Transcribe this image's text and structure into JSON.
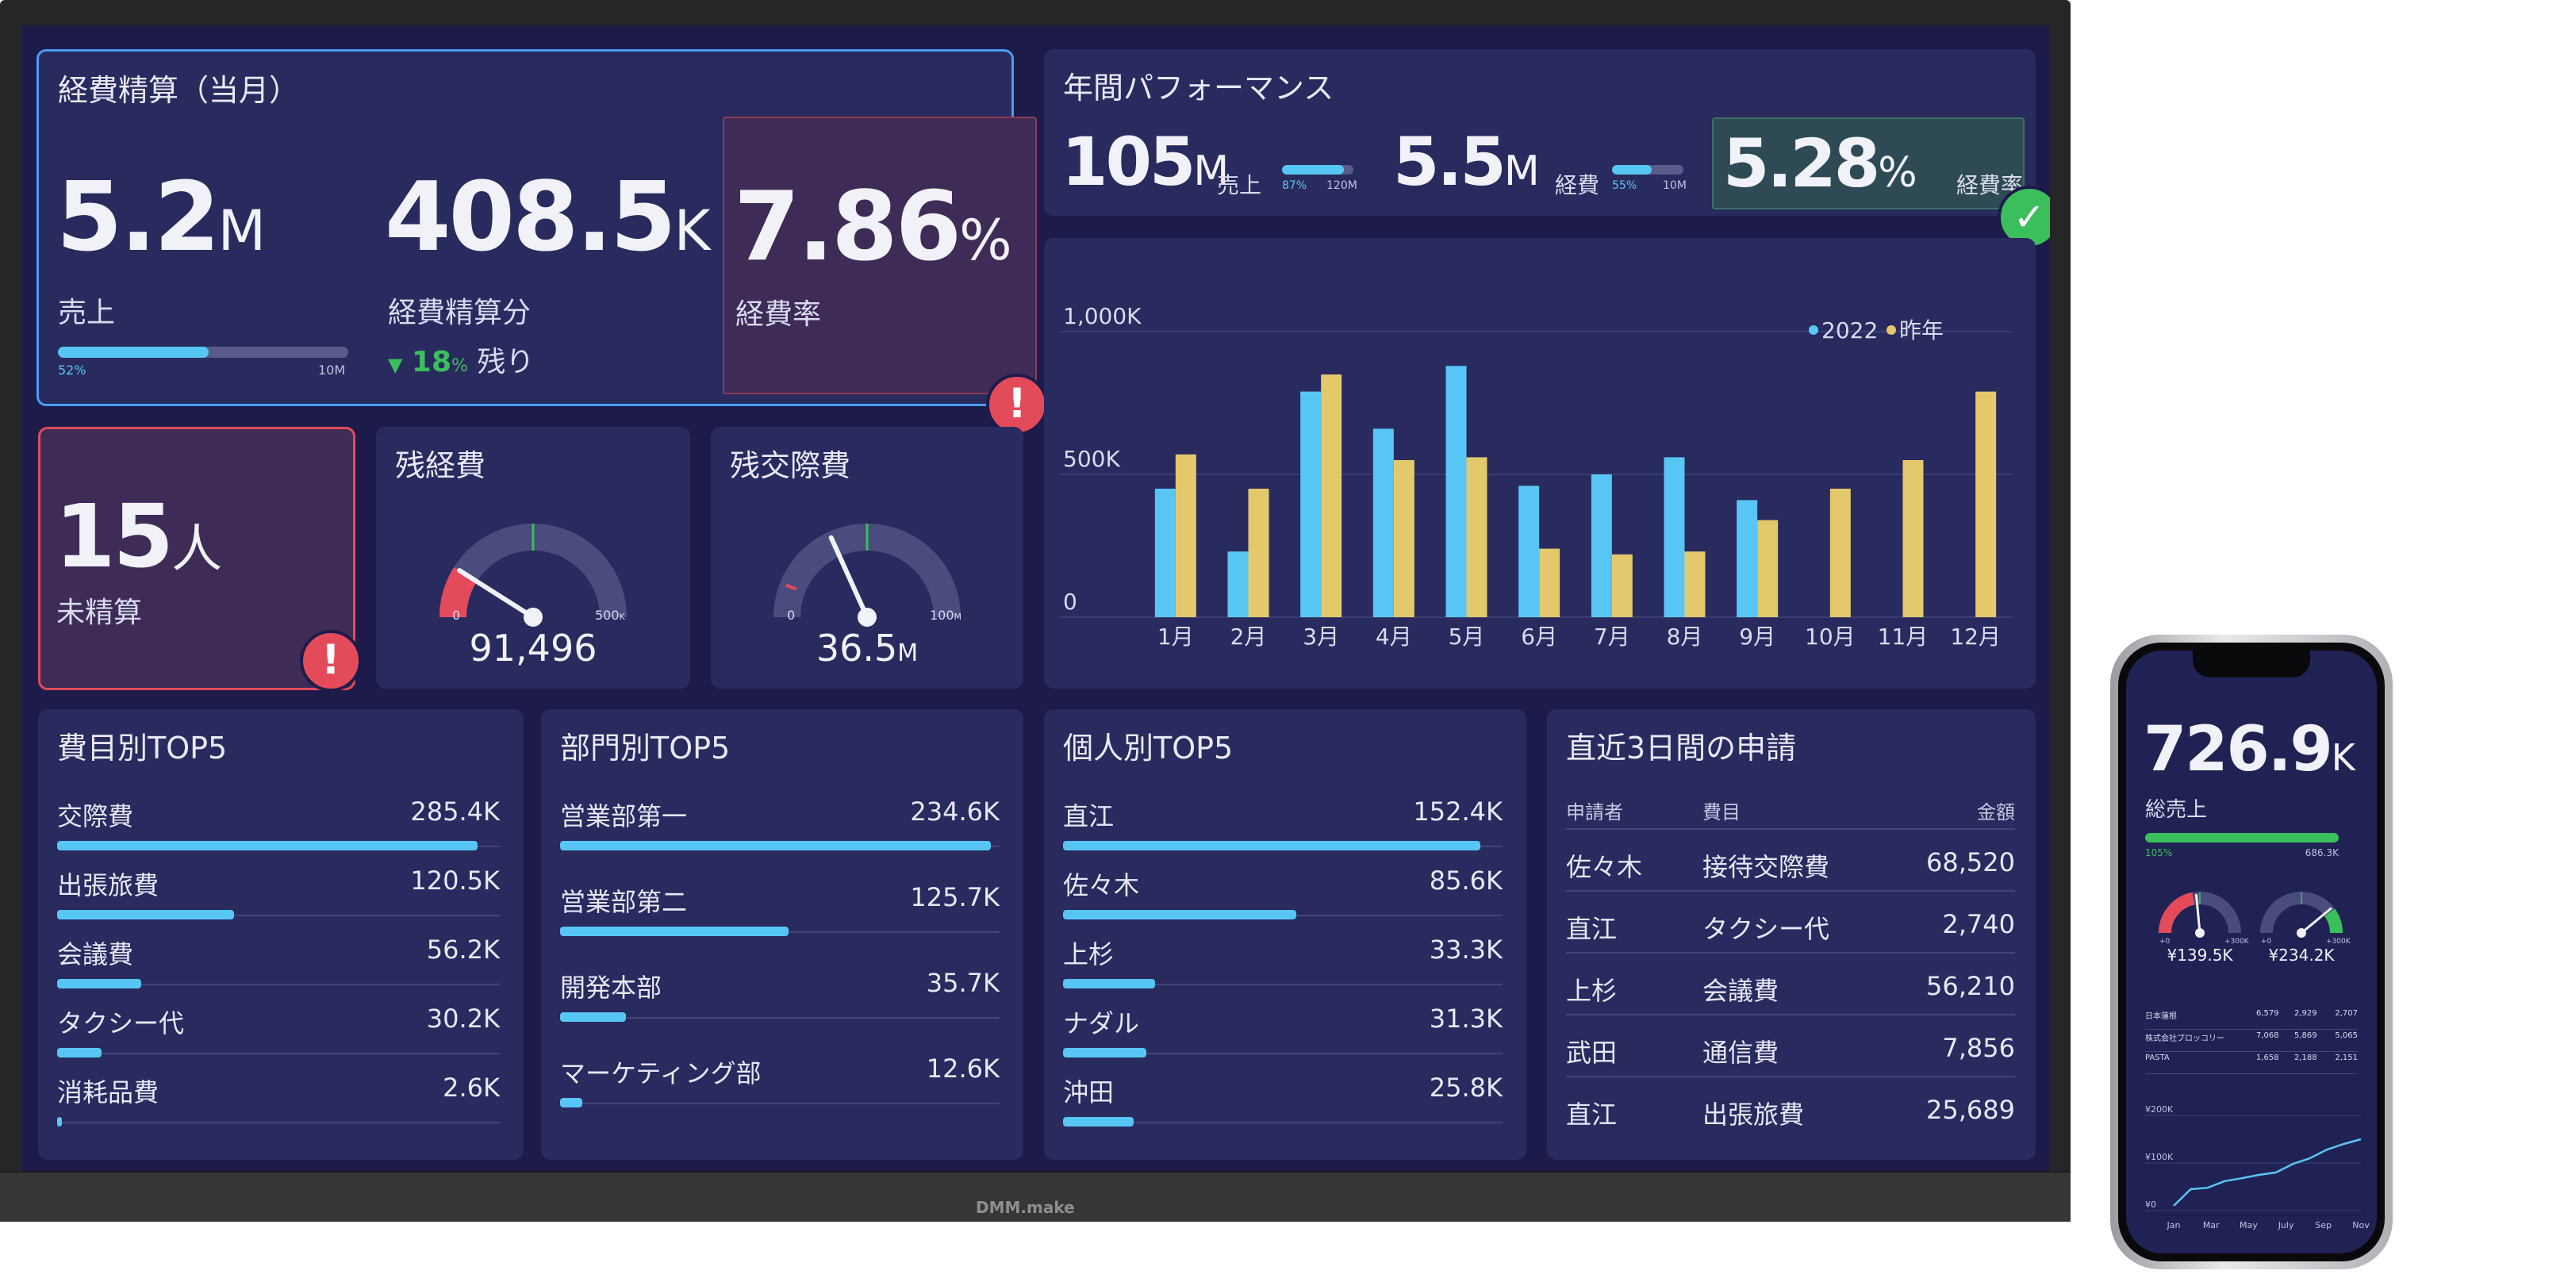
{
  "monthly": {
    "title": "経費精算（当月）",
    "sales_value": "5.2",
    "sales_unit": "M",
    "sales_label": "売上",
    "sales_bar_pct": 0.52,
    "sales_bar_min": "52%",
    "sales_bar_max": "10M",
    "expense_value": "408.5",
    "expense_unit": "K",
    "expense_label": "経費精算分",
    "remain_arrow": "▼",
    "remain_pct": "18",
    "remain_pct_unit": "%",
    "remain_label": "残り",
    "rate_value": "7.86",
    "rate_unit": "%",
    "rate_label": "経費率",
    "alert": "!"
  },
  "annual": {
    "title": "年間パフォーマンス",
    "sales_value": "105",
    "sales_unit": "M",
    "sales_label": "売上",
    "sales_bar_pct": 0.87,
    "sales_bar_min": "87%",
    "sales_bar_max": "120M",
    "expense_value": "5.5",
    "expense_unit": "M",
    "expense_label": "経費",
    "expense_bar_pct": 0.55,
    "expense_bar_min": "55%",
    "expense_bar_max": "10M",
    "rate_value": "5.28",
    "rate_unit": "%",
    "rate_label": "経費率",
    "ok": "✓"
  },
  "unsettled": {
    "value": "15",
    "unit": "人",
    "label": "未精算",
    "alert": "!"
  },
  "gauge_expense": {
    "title": "残経費",
    "value": "91,496",
    "min": "0",
    "max": "500",
    "max_unit": "K",
    "level": 0.18,
    "target": 0.5
  },
  "gauge_entertain": {
    "title": "残交際費",
    "value": "36.5",
    "value_unit": "M",
    "min": "0",
    "max": "100",
    "max_unit": "M",
    "level": 0.365,
    "target": 0.5
  },
  "chart_data": {
    "type": "bar",
    "categories": [
      "1月",
      "2月",
      "3月",
      "4月",
      "5月",
      "6月",
      "7月",
      "8月",
      "9月",
      "10月",
      "11月",
      "12月"
    ],
    "series": [
      {
        "name": "2022",
        "color": "#58c6f5",
        "values": [
          450,
          230,
          790,
          660,
          880,
          460,
          500,
          560,
          410,
          null,
          null,
          null
        ]
      },
      {
        "name": "昨年",
        "color": "#e3c96b",
        "values": [
          570,
          450,
          850,
          550,
          560,
          240,
          220,
          230,
          340,
          450,
          550,
          790
        ]
      }
    ],
    "yticks": [
      "0",
      "500K",
      "1,000K"
    ],
    "ylim": [
      0,
      1000
    ],
    "legend": "top-right",
    "grid": true
  },
  "top_category": {
    "title": "費目別TOP5",
    "items": [
      {
        "name": "交際費",
        "value": "285.4K",
        "pct": 0.95
      },
      {
        "name": "出張旅費",
        "value": "120.5K",
        "pct": 0.4
      },
      {
        "name": "会議費",
        "value": "56.2K",
        "pct": 0.19
      },
      {
        "name": "タクシー代",
        "value": "30.2K",
        "pct": 0.1
      },
      {
        "name": "消耗品費",
        "value": "2.6K",
        "pct": 0.01
      }
    ]
  },
  "top_dept": {
    "title": "部門別TOP5",
    "items": [
      {
        "name": "営業部第一",
        "value": "234.6K",
        "pct": 0.98
      },
      {
        "name": "営業部第二",
        "value": "125.7K",
        "pct": 0.52
      },
      {
        "name": "開発本部",
        "value": "35.7K",
        "pct": 0.15
      },
      {
        "name": "マーケティング部",
        "value": "12.6K",
        "pct": 0.05
      }
    ]
  },
  "top_person": {
    "title": "個人別TOP5",
    "items": [
      {
        "name": "直江",
        "value": "152.4K",
        "pct": 0.95
      },
      {
        "name": "佐々木",
        "value": "85.6K",
        "pct": 0.53
      },
      {
        "name": "上杉",
        "value": "33.3K",
        "pct": 0.21
      },
      {
        "name": "ナダル",
        "value": "31.3K",
        "pct": 0.19
      },
      {
        "name": "沖田",
        "value": "25.8K",
        "pct": 0.16
      }
    ]
  },
  "recent": {
    "title": "直近3日間の申請",
    "headers": {
      "applicant": "申請者",
      "item": "費目",
      "amount": "金額"
    },
    "rows": [
      {
        "applicant": "佐々木",
        "item": "接待交際費",
        "amount": "68,520"
      },
      {
        "applicant": "直江",
        "item": "タクシー代",
        "amount": "2,740"
      },
      {
        "applicant": "上杉",
        "item": "会議費",
        "amount": "56,210"
      },
      {
        "applicant": "武田",
        "item": "通信費",
        "amount": "7,856"
      },
      {
        "applicant": "直江",
        "item": "出張旅費",
        "amount": "25,689"
      }
    ]
  },
  "tv": {
    "brand": "DMM.make"
  },
  "phone": {
    "total_value": "726.9",
    "total_unit": "K",
    "total_label": "総売上",
    "bar_pct": 1.0,
    "bar_min": "105%",
    "bar_max": "686.3K",
    "g1_value": "¥139.5K",
    "g1_min": "+0",
    "g1_max": "+300K",
    "g2_value": "¥234.2K",
    "g2_min": "+0",
    "g2_max": "+300K",
    "table": [
      {
        "name": "日本蓮根",
        "a": "6,579",
        "b": "2,929",
        "c": "2,707"
      },
      {
        "name": "株式会社ブロッコリー",
        "a": "7,068",
        "b": "5,869",
        "c": "5,065"
      },
      {
        "name": "PASTA",
        "a": "1,658",
        "b": "2,188",
        "c": "2,151"
      }
    ],
    "line_ylabels": [
      "¥200K",
      "¥100K",
      "¥0"
    ],
    "line_xlabels": [
      "Jan",
      "Mar",
      "May",
      "July",
      "Sep",
      "Nov"
    ],
    "line_values": [
      10,
      45,
      48,
      62,
      68,
      75,
      80,
      98,
      110,
      128,
      140,
      150
    ]
  }
}
